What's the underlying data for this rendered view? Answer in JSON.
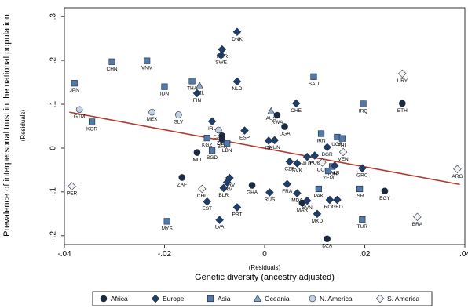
{
  "chart_data": {
    "type": "scatter",
    "xlabel": "Genetic diversity (ancestry adjusted)",
    "xlabel_sub": "(Residuals)",
    "ylabel": "Prevalence of interpersonal trust in the national population",
    "ylabel_sub": "(Residuals)",
    "xlim": [
      -0.04,
      0.04
    ],
    "ylim": [
      -0.22,
      0.32
    ],
    "xticks": [
      -0.04,
      -0.02,
      0,
      0.02,
      0.04
    ],
    "xtick_labels": [
      "-.04",
      "-.02",
      "0",
      ".02",
      ".04"
    ],
    "yticks": [
      -0.2,
      -0.1,
      0,
      0.1,
      0.2,
      0.3
    ],
    "ytick_labels": [
      "-.2",
      "-.1",
      "0",
      ".1",
      ".2",
      ".3"
    ],
    "grid": false,
    "legend_position": "bottom",
    "fit_line": {
      "x": [
        -0.039,
        0.039
      ],
      "y": [
        0.082,
        -0.083
      ],
      "color": "#b03a2e"
    },
    "legend": [
      {
        "name": "Africa",
        "marker": "circle",
        "color": "#1b2a3f"
      },
      {
        "name": "Europe",
        "marker": "diamond",
        "color": "#1f3f6b"
      },
      {
        "name": "Asia",
        "marker": "square",
        "color": "#5379a6"
      },
      {
        "name": "Oceania",
        "marker": "triangle",
        "color": "#8aa7c6"
      },
      {
        "name": "N. America",
        "marker": "circle",
        "color": "#c3d2e3"
      },
      {
        "name": "S. America",
        "marker": "diamond",
        "color": "#f2f2f2"
      }
    ],
    "points": [
      {
        "label": "DNK",
        "group": "Europe",
        "x": -0.0055,
        "y": 0.265
      },
      {
        "label": "NOR",
        "group": "Europe",
        "x": -0.0085,
        "y": 0.225
      },
      {
        "label": "SWE",
        "group": "Europe",
        "x": -0.0087,
        "y": 0.212
      },
      {
        "label": "CHN",
        "group": "Asia",
        "x": -0.0305,
        "y": 0.197
      },
      {
        "label": "VNM",
        "group": "Asia",
        "x": -0.0235,
        "y": 0.199
      },
      {
        "label": "JPN",
        "group": "Asia",
        "x": -0.038,
        "y": 0.148
      },
      {
        "label": "IDN",
        "group": "Asia",
        "x": -0.02,
        "y": 0.14
      },
      {
        "label": "THA",
        "group": "Asia",
        "x": -0.0145,
        "y": 0.153
      },
      {
        "label": "NZL",
        "group": "Oceania",
        "x": -0.013,
        "y": 0.142
      },
      {
        "label": "FIN",
        "group": "Europe",
        "x": -0.0135,
        "y": 0.125
      },
      {
        "label": "NLD",
        "group": "Europe",
        "x": -0.0055,
        "y": 0.152
      },
      {
        "label": "SAU",
        "group": "Asia",
        "x": 0.0098,
        "y": 0.163
      },
      {
        "label": "URY",
        "group": "S. America",
        "x": 0.0275,
        "y": 0.17
      },
      {
        "label": "GTM",
        "group": "N. America",
        "x": -0.037,
        "y": 0.088
      },
      {
        "label": "KOR",
        "group": "Asia",
        "x": -0.0345,
        "y": 0.06
      },
      {
        "label": "MEX",
        "group": "N. America",
        "x": -0.0225,
        "y": 0.082
      },
      {
        "label": "SLV",
        "group": "N. America",
        "x": -0.0172,
        "y": 0.076
      },
      {
        "label": "IRL",
        "group": "Europe",
        "x": -0.0105,
        "y": 0.061
      },
      {
        "label": "AUS",
        "group": "Oceania",
        "x": 0.0013,
        "y": 0.084
      },
      {
        "label": "RWA",
        "group": "Africa",
        "x": 0.0025,
        "y": 0.075
      },
      {
        "label": "CHE",
        "group": "Europe",
        "x": 0.0063,
        "y": 0.102
      },
      {
        "label": "IRQ",
        "group": "Asia",
        "x": 0.0197,
        "y": 0.101
      },
      {
        "label": "ETH",
        "group": "Africa",
        "x": 0.0275,
        "y": 0.102
      },
      {
        "label": "UGA",
        "group": "Africa",
        "x": 0.004,
        "y": 0.049
      },
      {
        "label": "CAN",
        "group": "N. America",
        "x": -0.0092,
        "y": 0.041
      },
      {
        "label": "ZMB",
        "group": "Africa",
        "x": -0.0085,
        "y": 0.028
      },
      {
        "label": "ESP",
        "group": "Europe",
        "x": -0.004,
        "y": 0.04
      },
      {
        "label": "IRN",
        "group": "Asia",
        "x": 0.0113,
        "y": 0.033
      },
      {
        "label": "KGZ",
        "group": "Asia",
        "x": -0.0115,
        "y": 0.023
      },
      {
        "label": "BGD",
        "group": "Asia",
        "x": -0.0105,
        "y": -0.005
      },
      {
        "label": "BFA",
        "group": "Africa",
        "x": -0.0085,
        "y": 0.02
      },
      {
        "label": "LBN",
        "group": "Asia",
        "x": -0.0075,
        "y": 0.011
      },
      {
        "label": "ITA",
        "group": "Europe",
        "x": 0.0008,
        "y": 0.017
      },
      {
        "label": "HUN",
        "group": "Europe",
        "x": 0.002,
        "y": 0.018
      },
      {
        "label": "UGR",
        "group": "Asia",
        "x": 0.0145,
        "y": 0.025
      },
      {
        "label": "PHL",
        "group": "Asia",
        "x": 0.0155,
        "y": 0.022
      },
      {
        "label": "BGR",
        "group": "Europe",
        "x": 0.0125,
        "y": 0.002
      },
      {
        "label": "VEN",
        "group": "S. America",
        "x": 0.0157,
        "y": -0.009
      },
      {
        "label": "MLI",
        "group": "Africa",
        "x": -0.0135,
        "y": -0.01
      },
      {
        "label": "CZE",
        "group": "Europe",
        "x": 0.005,
        "y": -0.031
      },
      {
        "label": "SVK",
        "group": "Europe",
        "x": 0.0065,
        "y": -0.035
      },
      {
        "label": "AUT",
        "group": "Europe",
        "x": 0.0085,
        "y": -0.02
      },
      {
        "label": "POL",
        "group": "Europe",
        "x": 0.01,
        "y": -0.017
      },
      {
        "label": "COL",
        "group": "S. America",
        "x": 0.0115,
        "y": -0.033
      },
      {
        "label": "TUR",
        "group": "Asia",
        "x": 0.0135,
        "y": -0.042
      },
      {
        "label": "YEM",
        "group": "Asia",
        "x": 0.0127,
        "y": -0.052
      },
      {
        "label": "ALB",
        "group": "Europe",
        "x": 0.014,
        "y": -0.04
      },
      {
        "label": "GRC",
        "group": "Europe",
        "x": 0.0195,
        "y": -0.046
      },
      {
        "label": "ZAF",
        "group": "Africa",
        "x": -0.0165,
        "y": -0.067
      },
      {
        "label": "CHL",
        "group": "S. America",
        "x": -0.0125,
        "y": -0.093
      },
      {
        "label": "HRV",
        "group": "Europe",
        "x": -0.007,
        "y": -0.068
      },
      {
        "label": "ARM",
        "group": "Europe",
        "x": -0.0075,
        "y": -0.078
      },
      {
        "label": "BLR",
        "group": "Europe",
        "x": -0.0082,
        "y": -0.091
      },
      {
        "label": "EST",
        "group": "Europe",
        "x": -0.0115,
        "y": -0.122
      },
      {
        "label": "GHA",
        "group": "Africa",
        "x": -0.0025,
        "y": -0.085
      },
      {
        "label": "RUS",
        "group": "Europe",
        "x": 0.001,
        "y": -0.101
      },
      {
        "label": "FRA",
        "group": "Europe",
        "x": 0.0045,
        "y": -0.082
      },
      {
        "label": "MDA",
        "group": "Europe",
        "x": 0.0065,
        "y": -0.103
      },
      {
        "label": "MAR",
        "group": "Africa",
        "x": 0.0075,
        "y": -0.125
      },
      {
        "label": "SVN",
        "group": "Europe",
        "x": 0.0085,
        "y": -0.12
      },
      {
        "label": "PAK",
        "group": "Asia",
        "x": 0.0108,
        "y": -0.093
      },
      {
        "label": "ROU",
        "group": "Europe",
        "x": 0.013,
        "y": -0.118
      },
      {
        "label": "GEO",
        "group": "Europe",
        "x": 0.0145,
        "y": -0.118
      },
      {
        "label": "ISR",
        "group": "Asia",
        "x": 0.019,
        "y": -0.093
      },
      {
        "label": "EGY",
        "group": "Africa",
        "x": 0.024,
        "y": -0.098
      },
      {
        "label": "MKD",
        "group": "Europe",
        "x": 0.0105,
        "y": -0.15
      },
      {
        "label": "LVA",
        "group": "Europe",
        "x": -0.009,
        "y": -0.164
      },
      {
        "label": "PRT",
        "group": "Europe",
        "x": -0.0055,
        "y": -0.135
      },
      {
        "label": "MYS",
        "group": "Asia",
        "x": -0.0195,
        "y": -0.167
      },
      {
        "label": "TUR",
        "group": "Asia",
        "x": 0.0195,
        "y": -0.163
      },
      {
        "label": "BRA",
        "group": "S. America",
        "x": 0.0305,
        "y": -0.157
      },
      {
        "label": "DZA",
        "group": "Africa",
        "x": 0.0125,
        "y": -0.207
      },
      {
        "label": "PER",
        "group": "S. America",
        "x": -0.0385,
        "y": -0.087
      },
      {
        "label": "ARG",
        "group": "S. America",
        "x": 0.0385,
        "y": -0.048
      }
    ]
  }
}
